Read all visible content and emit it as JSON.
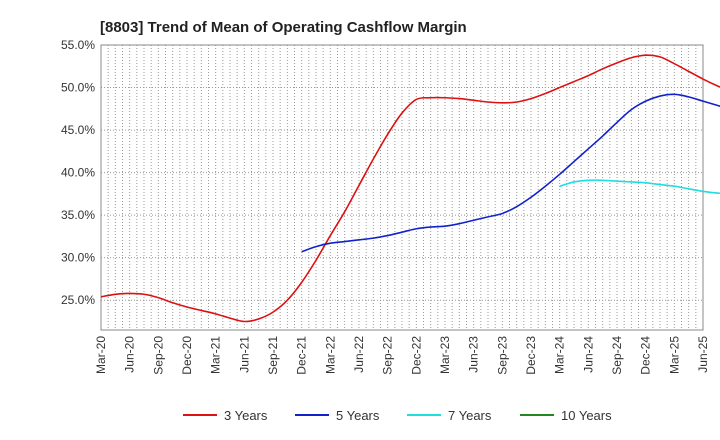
{
  "chart_data": {
    "type": "line",
    "title": "[8803]  Trend of Mean of Operating Cashflow Margin",
    "xlabel": "",
    "ylabel": "",
    "x_ticks": [
      "Mar-20",
      "Jun-20",
      "Sep-20",
      "Dec-20",
      "Mar-21",
      "Jun-21",
      "Sep-21",
      "Dec-21",
      "Mar-22",
      "Jun-22",
      "Sep-22",
      "Dec-22",
      "Mar-23",
      "Jun-23",
      "Sep-23",
      "Dec-23",
      "Mar-24",
      "Jun-24",
      "Sep-24",
      "Dec-24",
      "Mar-25",
      "Jun-25"
    ],
    "y_ticks": [
      "55.0%",
      "50.0%",
      "45.0%",
      "40.0%",
      "35.0%",
      "30.0%",
      "25.0%"
    ],
    "y_tick_values": [
      55,
      50,
      45,
      40,
      35,
      30,
      25
    ],
    "ylim": [
      21.5,
      55
    ],
    "grid": true,
    "legend_position": "bottom",
    "series": [
      {
        "name": "3 Years",
        "color": "#dd1111",
        "values": [
          25.4,
          25.7,
          25.8,
          25.7,
          25.3,
          24.7,
          24.2,
          23.8,
          23.4,
          22.9,
          22.5,
          22.8,
          23.6,
          25.0,
          27.1,
          29.7,
          32.6,
          35.4,
          38.5,
          41.6,
          44.5,
          47.0,
          48.6,
          48.8,
          48.8,
          48.7,
          48.5,
          48.3,
          48.2,
          48.3,
          48.7,
          49.3,
          50.0,
          50.7,
          51.4,
          52.2,
          52.9,
          53.5,
          53.8,
          53.6,
          52.8,
          51.9,
          51.0,
          50.2,
          49.5,
          48.8
        ]
      },
      {
        "name": "5 Years",
        "color": "#1122cc",
        "start_index": 14,
        "values": [
          30.7,
          31.3,
          31.7,
          31.9,
          32.1,
          32.3,
          32.6,
          33.0,
          33.4,
          33.6,
          33.7,
          34.0,
          34.4,
          34.8,
          35.2,
          36.0,
          37.1,
          38.4,
          39.8,
          41.3,
          42.8,
          44.3,
          45.9,
          47.4,
          48.4,
          49.0,
          49.2,
          48.9,
          48.4,
          47.9,
          47.4,
          46.9,
          46.4
        ]
      },
      {
        "name": "7 Years",
        "color": "#22dddd",
        "start_index": 32,
        "values": [
          38.4,
          38.9,
          39.1,
          39.1,
          39.0,
          38.9,
          38.8,
          38.6,
          38.4,
          38.1,
          37.8,
          37.6,
          37.5,
          37.5
        ]
      },
      {
        "name": "10 Years",
        "color": "#228822",
        "values": []
      }
    ]
  }
}
